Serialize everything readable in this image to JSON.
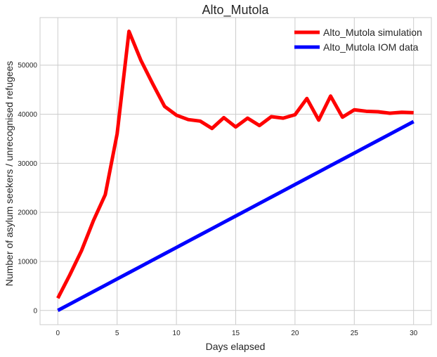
{
  "chart_data": {
    "type": "line",
    "title": "Alto_Mutola",
    "xlabel": "Days elapsed",
    "ylabel": "Number of asylum seekers / unrecognised refugees",
    "xlim": [
      -1.5,
      31.5
    ],
    "ylim": [
      -2900,
      59700
    ],
    "x_ticks": [
      0,
      5,
      10,
      15,
      20,
      25,
      30
    ],
    "y_ticks": [
      0,
      10000,
      20000,
      30000,
      40000,
      50000
    ],
    "grid": true,
    "legend_position": "top-right",
    "x": [
      0,
      1,
      2,
      3,
      4,
      5,
      6,
      7,
      8,
      9,
      10,
      11,
      12,
      13,
      14,
      15,
      16,
      17,
      18,
      19,
      20,
      21,
      22,
      23,
      24,
      25,
      26,
      27,
      28,
      29,
      30
    ],
    "series": [
      {
        "name": "Alto_Mutola simulation",
        "color": "#ff0000",
        "values": [
          2500,
          7200,
          12200,
          18300,
          23600,
          36000,
          56900,
          51000,
          46200,
          41600,
          39800,
          38900,
          38600,
          37100,
          39300,
          37400,
          39200,
          37700,
          39500,
          39200,
          39900,
          43200,
          38800,
          43700,
          39400,
          40900,
          40600,
          40500,
          40200,
          40400,
          40300
        ]
      },
      {
        "name": "Alto_Mutola IOM data",
        "color": "#0000ff",
        "values": [
          0,
          1283,
          2567,
          3850,
          5133,
          6417,
          7700,
          8983,
          10267,
          11550,
          12833,
          14117,
          15400,
          16683,
          17967,
          19250,
          20533,
          21817,
          23100,
          24383,
          25667,
          26950,
          28233,
          29517,
          30800,
          32083,
          33367,
          34650,
          35933,
          37217,
          38500
        ]
      }
    ]
  }
}
